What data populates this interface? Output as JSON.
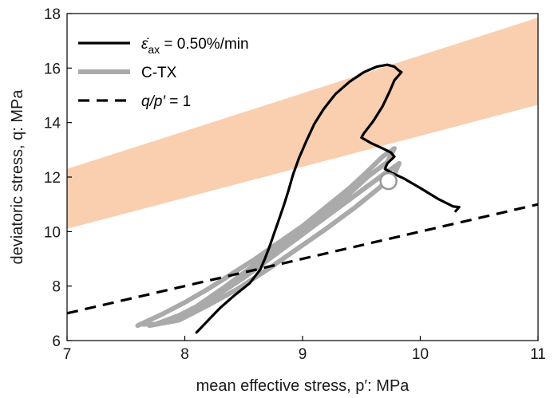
{
  "chart_data": {
    "type": "line",
    "xlabel": "mean effective stress, p′: MPa",
    "ylabel": "deviatoric stress, q: MPa",
    "xlim": [
      7,
      11
    ],
    "ylim": [
      6,
      18
    ],
    "xticks": [
      7,
      8,
      9,
      10,
      11
    ],
    "yticks": [
      6,
      8,
      10,
      12,
      14,
      16,
      18
    ],
    "grid": false,
    "legend_placement": "top-left",
    "band": {
      "color": "#f9cfb0",
      "lower": [
        [
          7,
          10.1
        ],
        [
          11,
          14.65
        ]
      ],
      "upper": [
        [
          7,
          12.3
        ],
        [
          11,
          17.85
        ]
      ]
    },
    "series": [
      {
        "name": "ε̇ax = 0.50%/min",
        "color": "#000000",
        "style": "solid",
        "points": [
          [
            8.1,
            6.3
          ],
          [
            8.2,
            6.75
          ],
          [
            8.3,
            7.2
          ],
          [
            8.42,
            7.65
          ],
          [
            8.55,
            8.1
          ],
          [
            8.64,
            8.6
          ],
          [
            8.68,
            9.0
          ],
          [
            8.72,
            9.45
          ],
          [
            8.76,
            9.95
          ],
          [
            8.8,
            10.45
          ],
          [
            8.84,
            10.95
          ],
          [
            8.88,
            11.5
          ],
          [
            8.92,
            12.1
          ],
          [
            8.97,
            12.7
          ],
          [
            9.03,
            13.3
          ],
          [
            9.1,
            13.95
          ],
          [
            9.18,
            14.5
          ],
          [
            9.28,
            15.05
          ],
          [
            9.4,
            15.5
          ],
          [
            9.52,
            15.85
          ],
          [
            9.63,
            16.05
          ],
          [
            9.72,
            16.12
          ],
          [
            9.78,
            16.05
          ],
          [
            9.82,
            15.9
          ],
          [
            9.84,
            15.85
          ],
          [
            9.78,
            15.55
          ],
          [
            9.74,
            15.15
          ],
          [
            9.68,
            14.6
          ],
          [
            9.6,
            14.05
          ],
          [
            9.52,
            13.6
          ],
          [
            9.5,
            13.45
          ],
          [
            9.58,
            13.25
          ],
          [
            9.68,
            13.05
          ],
          [
            9.75,
            12.9
          ],
          [
            9.78,
            12.75
          ],
          [
            9.72,
            12.5
          ],
          [
            9.7,
            12.3
          ],
          [
            9.76,
            12.15
          ],
          [
            9.86,
            11.95
          ],
          [
            10.0,
            11.6
          ],
          [
            10.15,
            11.2
          ],
          [
            10.28,
            10.92
          ],
          [
            10.33,
            10.9
          ],
          [
            10.3,
            10.75
          ]
        ]
      },
      {
        "name": "C-TX",
        "color": "#aaaaaa",
        "style": "solid",
        "points": [
          [
            7.6,
            6.55
          ],
          [
            7.8,
            6.95
          ],
          [
            8.0,
            7.4
          ],
          [
            8.2,
            7.9
          ],
          [
            8.4,
            8.45
          ],
          [
            8.6,
            9.0
          ],
          [
            8.8,
            9.6
          ],
          [
            9.0,
            10.2
          ],
          [
            9.2,
            10.9
          ],
          [
            9.4,
            11.6
          ],
          [
            9.55,
            12.2
          ],
          [
            9.68,
            12.75
          ],
          [
            9.78,
            13.05
          ],
          [
            9.72,
            12.55
          ],
          [
            9.55,
            12.0
          ],
          [
            9.35,
            11.2
          ],
          [
            9.1,
            10.4
          ],
          [
            8.85,
            9.6
          ],
          [
            8.6,
            8.8
          ],
          [
            8.35,
            8.0
          ],
          [
            8.1,
            7.25
          ],
          [
            7.85,
            6.7
          ],
          [
            7.7,
            6.55
          ],
          [
            7.95,
            6.75
          ],
          [
            8.2,
            7.3
          ],
          [
            8.45,
            7.9
          ],
          [
            8.7,
            8.6
          ],
          [
            8.95,
            9.35
          ],
          [
            9.2,
            10.1
          ],
          [
            9.45,
            10.9
          ],
          [
            9.65,
            11.6
          ],
          [
            9.78,
            12.1
          ],
          [
            9.82,
            12.5
          ],
          [
            9.72,
            12.2
          ],
          [
            9.5,
            11.5
          ],
          [
            9.25,
            10.7
          ],
          [
            9.0,
            9.9
          ],
          [
            8.75,
            9.1
          ],
          [
            8.5,
            8.3
          ],
          [
            8.25,
            7.6
          ],
          [
            8.0,
            7.0
          ],
          [
            7.75,
            6.6
          ],
          [
            7.62,
            6.6
          ]
        ]
      },
      {
        "name": "q/p′ = 1",
        "color": "#000000",
        "style": "dashed",
        "points": [
          [
            7,
            7
          ],
          [
            11,
            11
          ]
        ]
      }
    ],
    "marker": {
      "type": "open-circle",
      "x": 9.73,
      "y": 11.85,
      "color": "#9a9a9a"
    },
    "legend": {
      "entries": [
        {
          "prefix": "ε̇",
          "sub": "ax",
          "suffix": " = 0.50%/min",
          "color": "#000000",
          "style": "solid"
        },
        {
          "prefix": "C-TX",
          "sub": "",
          "suffix": "",
          "color": "#aaaaaa",
          "style": "solid"
        },
        {
          "prefix": "q/p′",
          "sub": "",
          "suffix": " = 1",
          "color": "#000000",
          "style": "dashed",
          "italic_prefix": true
        }
      ]
    }
  }
}
